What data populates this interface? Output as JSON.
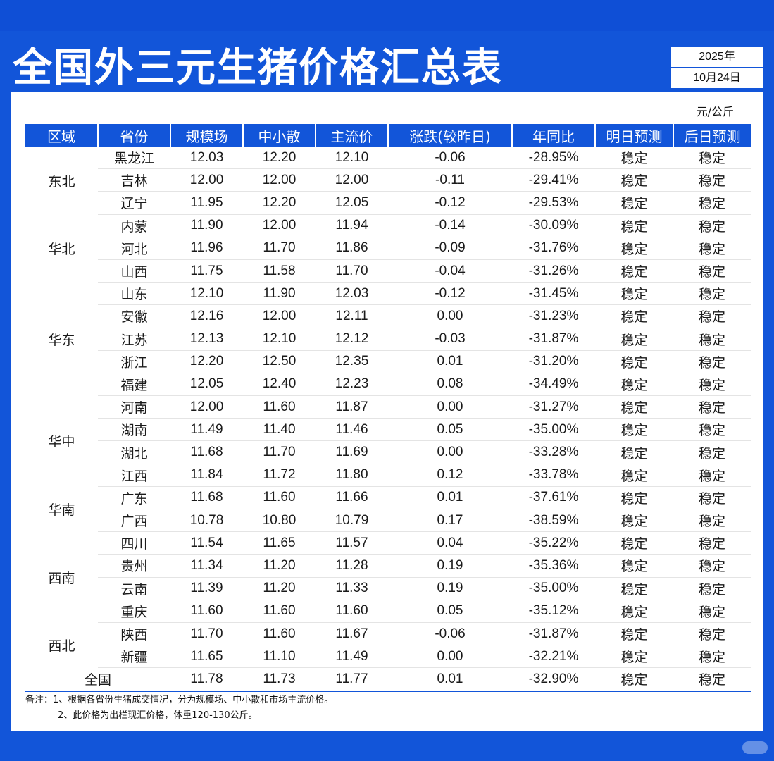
{
  "title": "全国外三元生猪价格汇总表",
  "date": {
    "year": "2025年",
    "day": "10月24日"
  },
  "unit": "元/公斤",
  "headers": [
    "区域",
    "省份",
    "规模场",
    "中小散",
    "主流价",
    "涨跌(较昨日)",
    "年同比",
    "明日预测",
    "后日预测"
  ],
  "regions": [
    {
      "name": "东北",
      "rowspan": 3
    },
    {
      "name": "华北",
      "rowspan": 3
    },
    {
      "name": "华东",
      "rowspan": 5
    },
    {
      "name": "华中",
      "rowspan": 4
    },
    {
      "name": "华南",
      "rowspan": 2
    },
    {
      "name": "西南",
      "rowspan": 4
    },
    {
      "name": "西北",
      "rowspan": 2
    }
  ],
  "rows": [
    {
      "province": "黑龙江",
      "scale": "12.03",
      "small": "12.20",
      "main": "12.10",
      "change": "-0.06",
      "trend": "down",
      "yoy": "-28.95%",
      "tomorrow": "稳定",
      "after": "稳定"
    },
    {
      "province": "吉林",
      "scale": "12.00",
      "small": "12.00",
      "main": "12.00",
      "change": "-0.11",
      "trend": "down",
      "yoy": "-29.41%",
      "tomorrow": "稳定",
      "after": "稳定"
    },
    {
      "province": "辽宁",
      "scale": "11.95",
      "small": "12.20",
      "main": "12.05",
      "change": "-0.12",
      "trend": "down",
      "yoy": "-29.53%",
      "tomorrow": "稳定",
      "after": "稳定"
    },
    {
      "province": "内蒙",
      "scale": "11.90",
      "small": "12.00",
      "main": "11.94",
      "change": "-0.14",
      "trend": "down",
      "yoy": "-30.09%",
      "tomorrow": "稳定",
      "after": "稳定"
    },
    {
      "province": "河北",
      "scale": "11.96",
      "small": "11.70",
      "main": "11.86",
      "change": "-0.09",
      "trend": "down",
      "yoy": "-31.76%",
      "tomorrow": "稳定",
      "after": "稳定"
    },
    {
      "province": "山西",
      "scale": "11.75",
      "small": "11.58",
      "main": "11.70",
      "change": "-0.04",
      "trend": "down",
      "yoy": "-31.26%",
      "tomorrow": "稳定",
      "after": "稳定"
    },
    {
      "province": "山东",
      "scale": "12.10",
      "small": "11.90",
      "main": "12.03",
      "change": "-0.12",
      "trend": "down",
      "yoy": "-31.45%",
      "tomorrow": "稳定",
      "after": "稳定"
    },
    {
      "province": "安徽",
      "scale": "12.16",
      "small": "12.00",
      "main": "12.11",
      "change": "0.00",
      "trend": "flat",
      "yoy": "-31.23%",
      "tomorrow": "稳定",
      "after": "稳定"
    },
    {
      "province": "江苏",
      "scale": "12.13",
      "small": "12.10",
      "main": "12.12",
      "change": "-0.03",
      "trend": "down",
      "yoy": "-31.87%",
      "tomorrow": "稳定",
      "after": "稳定"
    },
    {
      "province": "浙江",
      "scale": "12.20",
      "small": "12.50",
      "main": "12.35",
      "change": "0.01",
      "trend": "up",
      "yoy": "-31.20%",
      "tomorrow": "稳定",
      "after": "稳定"
    },
    {
      "province": "福建",
      "scale": "12.05",
      "small": "12.40",
      "main": "12.23",
      "change": "0.08",
      "trend": "up",
      "yoy": "-34.49%",
      "tomorrow": "稳定",
      "after": "稳定"
    },
    {
      "province": "河南",
      "scale": "12.00",
      "small": "11.60",
      "main": "11.87",
      "change": "0.00",
      "trend": "flat",
      "yoy": "-31.27%",
      "tomorrow": "稳定",
      "after": "稳定"
    },
    {
      "province": "湖南",
      "scale": "11.49",
      "small": "11.40",
      "main": "11.46",
      "change": "0.05",
      "trend": "up",
      "yoy": "-35.00%",
      "tomorrow": "稳定",
      "after": "稳定"
    },
    {
      "province": "湖北",
      "scale": "11.68",
      "small": "11.70",
      "main": "11.69",
      "change": "0.00",
      "trend": "flat",
      "yoy": "-33.28%",
      "tomorrow": "稳定",
      "after": "稳定"
    },
    {
      "province": "江西",
      "scale": "11.84",
      "small": "11.72",
      "main": "11.80",
      "change": "0.12",
      "trend": "up",
      "yoy": "-33.78%",
      "tomorrow": "稳定",
      "after": "稳定"
    },
    {
      "province": "广东",
      "scale": "11.68",
      "small": "11.60",
      "main": "11.66",
      "change": "0.01",
      "trend": "up",
      "yoy": "-37.61%",
      "tomorrow": "稳定",
      "after": "稳定"
    },
    {
      "province": "广西",
      "scale": "10.78",
      "small": "10.80",
      "main": "10.79",
      "change": "0.17",
      "trend": "up",
      "yoy": "-38.59%",
      "tomorrow": "稳定",
      "after": "稳定"
    },
    {
      "province": "四川",
      "scale": "11.54",
      "small": "11.65",
      "main": "11.57",
      "change": "0.04",
      "trend": "up",
      "yoy": "-35.22%",
      "tomorrow": "稳定",
      "after": "稳定"
    },
    {
      "province": "贵州",
      "scale": "11.34",
      "small": "11.20",
      "main": "11.28",
      "change": "0.19",
      "trend": "up",
      "yoy": "-35.36%",
      "tomorrow": "稳定",
      "after": "稳定"
    },
    {
      "province": "云南",
      "scale": "11.39",
      "small": "11.20",
      "main": "11.33",
      "change": "0.19",
      "trend": "up",
      "yoy": "-35.00%",
      "tomorrow": "稳定",
      "after": "稳定"
    },
    {
      "province": "重庆",
      "scale": "11.60",
      "small": "11.60",
      "main": "11.60",
      "change": "0.05",
      "trend": "up",
      "yoy": "-35.12%",
      "tomorrow": "稳定",
      "after": "稳定"
    },
    {
      "province": "陕西",
      "scale": "11.70",
      "small": "11.60",
      "main": "11.67",
      "change": "-0.06",
      "trend": "down",
      "yoy": "-31.87%",
      "tomorrow": "稳定",
      "after": "稳定"
    },
    {
      "province": "新疆",
      "scale": "11.65",
      "small": "11.10",
      "main": "11.49",
      "change": "0.00",
      "trend": "flat",
      "yoy": "-32.21%",
      "tomorrow": "稳定",
      "after": "稳定"
    }
  ],
  "national": {
    "label": "全国",
    "scale": "11.78",
    "small": "11.73",
    "main": "11.77",
    "change": "0.01",
    "trend": "up",
    "yoy": "-32.90%",
    "tomorrow": "稳定",
    "after": "稳定"
  },
  "notes": [
    "备注：1、根据各省份生猪成交情况，分为规模场、中小散和市场主流价格。",
    "2、此价格为出栏现汇价格，体重120-130公斤。"
  ],
  "colors": {
    "brand": "#1255d9",
    "up": "#e8283d",
    "down": "#17b860"
  }
}
